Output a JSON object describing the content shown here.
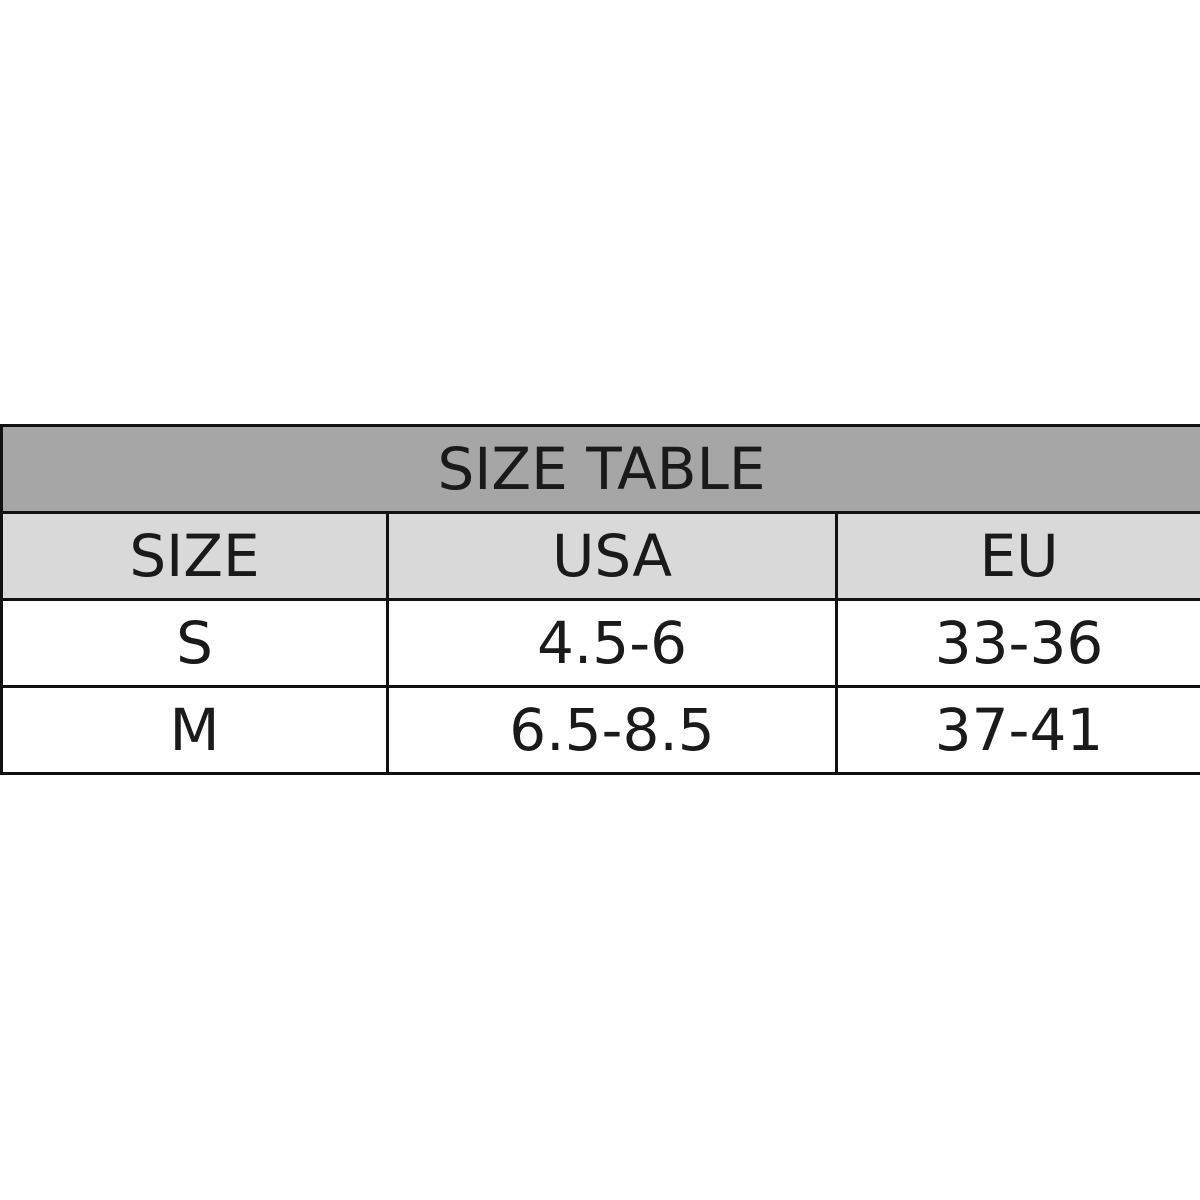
{
  "table": {
    "title": "SIZE TABLE",
    "headers": [
      "SIZE",
      "USA",
      "EU"
    ],
    "rows": [
      [
        "S",
        "4.5-6",
        "33-36"
      ],
      [
        "M",
        "6.5-8.5",
        "37-41"
      ]
    ]
  },
  "colors": {
    "title_bg": "#a6a6a6",
    "header_bg": "#d9d9d9",
    "border": "#111111"
  }
}
